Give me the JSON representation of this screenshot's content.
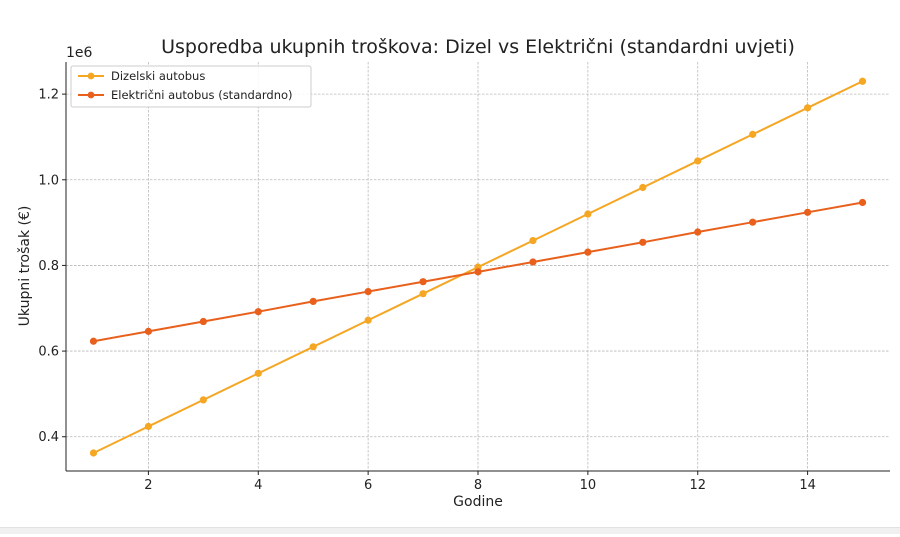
{
  "chart_data": {
    "type": "line",
    "title": "Usporedba ukupnih troškova: Dizel vs Električni (standardni uvjeti)",
    "xlabel": "Godine",
    "ylabel": "Ukupni trošak (€)",
    "y_offset_label": "1e6",
    "x": [
      1,
      2,
      3,
      4,
      5,
      6,
      7,
      8,
      9,
      10,
      11,
      12,
      13,
      14,
      15
    ],
    "xlim": [
      0.5,
      15.5
    ],
    "ylim": [
      0.32,
      1.275
    ],
    "xticks": [
      2,
      4,
      6,
      8,
      10,
      12,
      14
    ],
    "yticks": [
      0.4,
      0.6,
      0.8,
      1.0,
      1.2
    ],
    "ytick_labels": [
      "0.4",
      "0.6",
      "0.8",
      "1.0",
      "1.2"
    ],
    "grid": true,
    "legend_position": "top-left",
    "series": [
      {
        "name": "Dizelski autobus",
        "color": "#f5a623",
        "values": [
          0.362,
          0.424,
          0.486,
          0.548,
          0.61,
          0.672,
          0.734,
          0.796,
          0.858,
          0.92,
          0.982,
          1.044,
          1.106,
          1.168,
          1.23
        ]
      },
      {
        "name": "Električni autobus (standardno)",
        "color": "#e8601c",
        "values": [
          0.623,
          0.646,
          0.669,
          0.692,
          0.716,
          0.739,
          0.762,
          0.785,
          0.808,
          0.831,
          0.854,
          0.878,
          0.901,
          0.924,
          0.947
        ]
      }
    ]
  }
}
